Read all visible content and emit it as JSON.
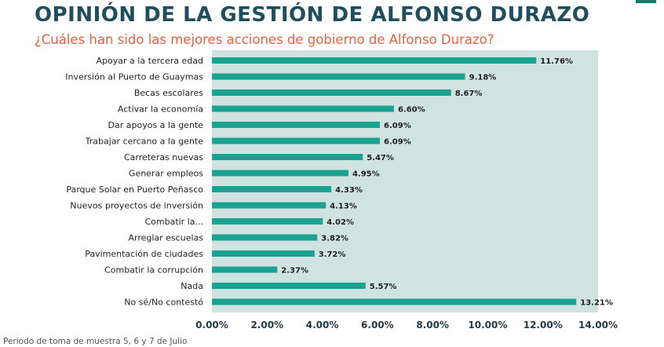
{
  "page": {
    "title": "OPINIÓN DE LA GESTIÓN DE ALFONSO DURAZO",
    "subtitle": "¿Cuáles han sido las mejores acciones de gobierno de Alfonso Durazo?",
    "footer": "Periodo de toma de muestra 5, 6 y 7 de Julio"
  },
  "colors": {
    "bar": "#1ba391",
    "plot_background": "#cfe4e0",
    "title": "#1f4e5f",
    "subtitle": "#e8613c"
  },
  "chart_data": {
    "type": "bar",
    "orientation": "horizontal",
    "categories": [
      "Apoyar a la tercera edad",
      "Inversión al Puerto de Guaymas",
      "Becas escolares",
      "Activar la economía",
      "Dar apoyos a la gente",
      "Trabajar cercano a la gente",
      "Carreteras nuevas",
      "Generar empleos",
      "Parque Solar en Puerto Peñasco",
      "Nuevos proyectos de inversión",
      "Combatir la...",
      "Arreglar escuelas",
      "Pavimentación de ciudades",
      "Combatir la corrupción",
      "Nada",
      "No sé/No contestó"
    ],
    "values": [
      11.76,
      9.18,
      8.67,
      6.6,
      6.09,
      6.09,
      5.47,
      4.95,
      4.33,
      4.13,
      4.02,
      3.82,
      3.72,
      2.37,
      5.57,
      13.21
    ],
    "data_labels": [
      "11.76%",
      "9.18%",
      "8.67%",
      "6.60%",
      "6.09%",
      "6.09%",
      "5.47%",
      "4.95%",
      "4.33%",
      "4.13%",
      "4.02%",
      "3.82%",
      "3.72%",
      "2.37%",
      "5.57%",
      "13.21%"
    ],
    "xlim": [
      0,
      14
    ],
    "x_ticks": [
      "0.00%",
      "2.00%",
      "4.00%",
      "6.00%",
      "8.00%",
      "10.00%",
      "12.00%",
      "14.00%"
    ],
    "grid": false
  }
}
